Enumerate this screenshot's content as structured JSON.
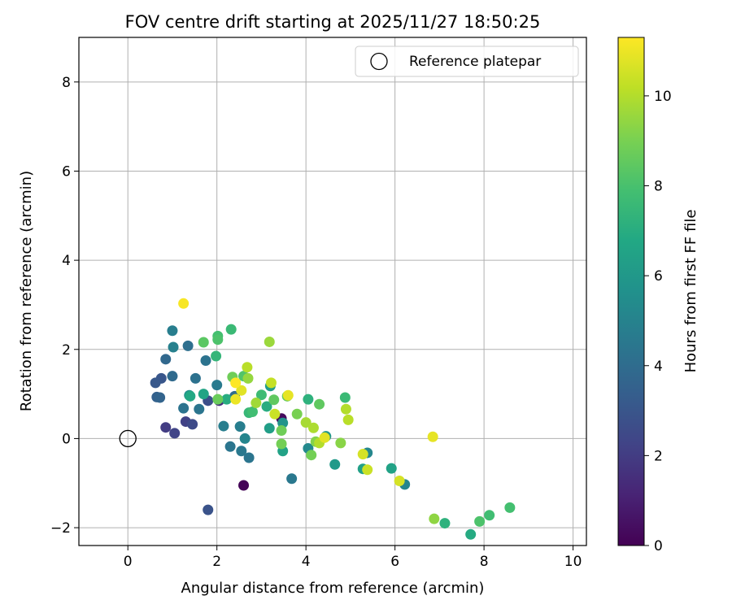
{
  "chart_data": {
    "type": "scatter",
    "title": "FOV centre drift starting at 2025/11/27 18:50:25",
    "xlabel": "Angular distance from reference (arcmin)",
    "ylabel": "Rotation from reference (arcmin)",
    "xlim": [
      -1.1,
      10.3
    ],
    "ylim": [
      -2.4,
      9.0
    ],
    "xticks": [
      0,
      2,
      4,
      6,
      8,
      10
    ],
    "yticks": [
      -2,
      0,
      2,
      4,
      6,
      8
    ],
    "xtick_labels": [
      "0",
      "2",
      "4",
      "6",
      "8",
      "10"
    ],
    "ytick_labels": [
      "−2",
      "0",
      "2",
      "4",
      "6",
      "8"
    ],
    "grid": true,
    "legend": {
      "location": "upper-right",
      "entries": [
        "Reference platepar"
      ]
    },
    "reference_point": {
      "x": 0,
      "y": 0,
      "label": "Reference platepar"
    },
    "colorbar": {
      "label": "Hours from first FF file",
      "colormap": "viridis",
      "min": 0,
      "max": 11.3,
      "ticks": [
        0,
        2,
        4,
        6,
        8,
        10
      ],
      "tick_labels": [
        "0",
        "2",
        "4",
        "6",
        "8",
        "10"
      ]
    },
    "points": [
      {
        "x": 2.6,
        "y": -1.05,
        "c": 0.1
      },
      {
        "x": 3.45,
        "y": 0.45,
        "c": 0.3
      },
      {
        "x": 2.05,
        "y": 0.85,
        "c": 1.5
      },
      {
        "x": 0.85,
        "y": 0.25,
        "c": 2.0
      },
      {
        "x": 1.3,
        "y": 0.38,
        "c": 2.2
      },
      {
        "x": 1.05,
        "y": 0.12,
        "c": 2.3
      },
      {
        "x": 1.45,
        "y": 0.32,
        "c": 2.5
      },
      {
        "x": 1.8,
        "y": -1.6,
        "c": 2.9
      },
      {
        "x": 1.8,
        "y": 0.85,
        "c": 2.7
      },
      {
        "x": 0.75,
        "y": 1.35,
        "c": 3.0
      },
      {
        "x": 0.62,
        "y": 1.25,
        "c": 3.1
      },
      {
        "x": 0.65,
        "y": 0.93,
        "c": 3.5
      },
      {
        "x": 0.72,
        "y": 0.92,
        "c": 3.6
      },
      {
        "x": 0.85,
        "y": 1.78,
        "c": 3.8
      },
      {
        "x": 1.0,
        "y": 1.4,
        "c": 3.9
      },
      {
        "x": 1.35,
        "y": 2.08,
        "c": 4.1
      },
      {
        "x": 1.25,
        "y": 0.68,
        "c": 4.3
      },
      {
        "x": 1.52,
        "y": 1.35,
        "c": 4.2
      },
      {
        "x": 1.6,
        "y": 0.66,
        "c": 4.4
      },
      {
        "x": 1.75,
        "y": 1.75,
        "c": 4.3
      },
      {
        "x": 2.0,
        "y": 1.2,
        "c": 4.6
      },
      {
        "x": 2.15,
        "y": 0.28,
        "c": 4.8
      },
      {
        "x": 2.3,
        "y": -0.18,
        "c": 4.4
      },
      {
        "x": 2.4,
        "y": 0.95,
        "c": 4.0
      },
      {
        "x": 2.52,
        "y": 0.27,
        "c": 4.8
      },
      {
        "x": 2.55,
        "y": -0.28,
        "c": 4.5
      },
      {
        "x": 2.72,
        "y": -0.43,
        "c": 4.4
      },
      {
        "x": 1.0,
        "y": 2.42,
        "c": 4.8
      },
      {
        "x": 1.02,
        "y": 2.05,
        "c": 4.9
      },
      {
        "x": 2.63,
        "y": 0.0,
        "c": 5.1
      },
      {
        "x": 3.68,
        "y": -0.9,
        "c": 4.5
      },
      {
        "x": 4.05,
        "y": -0.22,
        "c": 5.3
      },
      {
        "x": 5.38,
        "y": -0.32,
        "c": 5.2
      },
      {
        "x": 6.22,
        "y": -1.03,
        "c": 5.1
      },
      {
        "x": 1.38,
        "y": 0.97,
        "c": 5.6
      },
      {
        "x": 3.48,
        "y": 0.35,
        "c": 5.8
      },
      {
        "x": 4.45,
        "y": 0.05,
        "c": 5.9
      },
      {
        "x": 4.65,
        "y": -0.58,
        "c": 6.1
      },
      {
        "x": 3.2,
        "y": 1.18,
        "c": 6.2
      },
      {
        "x": 3.18,
        "y": 0.23,
        "c": 6.3
      },
      {
        "x": 3.48,
        "y": -0.28,
        "c": 6.5
      },
      {
        "x": 5.28,
        "y": -0.68,
        "c": 6.4
      },
      {
        "x": 5.92,
        "y": -0.67,
        "c": 6.5
      },
      {
        "x": 1.7,
        "y": 1.0,
        "c": 6.6
      },
      {
        "x": 1.4,
        "y": 0.95,
        "c": 6.8
      },
      {
        "x": 2.22,
        "y": 0.88,
        "c": 7.0
      },
      {
        "x": 3.12,
        "y": 0.72,
        "c": 7.0
      },
      {
        "x": 4.05,
        "y": 0.88,
        "c": 7.2
      },
      {
        "x": 7.7,
        "y": -2.15,
        "c": 6.9
      },
      {
        "x": 7.12,
        "y": -1.9,
        "c": 7.2
      },
      {
        "x": 1.98,
        "y": 1.85,
        "c": 7.4
      },
      {
        "x": 2.32,
        "y": 2.45,
        "c": 7.6
      },
      {
        "x": 2.02,
        "y": 2.3,
        "c": 7.9
      },
      {
        "x": 2.72,
        "y": 0.58,
        "c": 7.5
      },
      {
        "x": 3.0,
        "y": 0.98,
        "c": 7.7
      },
      {
        "x": 2.8,
        "y": 0.6,
        "c": 7.8
      },
      {
        "x": 4.88,
        "y": 0.92,
        "c": 7.6
      },
      {
        "x": 8.12,
        "y": -1.72,
        "c": 7.8
      },
      {
        "x": 8.58,
        "y": -1.55,
        "c": 7.9
      },
      {
        "x": 7.9,
        "y": -1.86,
        "c": 8.1
      },
      {
        "x": 2.02,
        "y": 2.22,
        "c": 8.1
      },
      {
        "x": 1.7,
        "y": 2.16,
        "c": 8.4
      },
      {
        "x": 2.6,
        "y": 1.4,
        "c": 8.2
      },
      {
        "x": 3.28,
        "y": 0.87,
        "c": 8.5
      },
      {
        "x": 4.3,
        "y": 0.77,
        "c": 8.5
      },
      {
        "x": 3.58,
        "y": 0.95,
        "c": 8.6
      },
      {
        "x": 2.02,
        "y": 0.88,
        "c": 8.7
      },
      {
        "x": 2.35,
        "y": 1.38,
        "c": 8.8
      },
      {
        "x": 3.45,
        "y": 0.18,
        "c": 8.8
      },
      {
        "x": 3.45,
        "y": -0.12,
        "c": 8.9
      },
      {
        "x": 4.12,
        "y": -0.37,
        "c": 8.9
      },
      {
        "x": 3.8,
        "y": 0.55,
        "c": 9.0
      },
      {
        "x": 4.22,
        "y": -0.07,
        "c": 9.2
      },
      {
        "x": 4.78,
        "y": -0.1,
        "c": 9.3
      },
      {
        "x": 6.88,
        "y": -1.8,
        "c": 9.4
      },
      {
        "x": 3.18,
        "y": 2.17,
        "c": 9.6
      },
      {
        "x": 2.7,
        "y": 1.35,
        "c": 9.5
      },
      {
        "x": 2.88,
        "y": 0.8,
        "c": 9.7
      },
      {
        "x": 4.0,
        "y": 0.36,
        "c": 9.8
      },
      {
        "x": 4.17,
        "y": 0.24,
        "c": 9.9
      },
      {
        "x": 4.3,
        "y": -0.1,
        "c": 10.0
      },
      {
        "x": 4.9,
        "y": 0.66,
        "c": 10.0
      },
      {
        "x": 4.95,
        "y": 0.42,
        "c": 10.1
      },
      {
        "x": 2.68,
        "y": 1.6,
        "c": 10.1
      },
      {
        "x": 3.22,
        "y": 1.25,
        "c": 10.3
      },
      {
        "x": 3.3,
        "y": 0.55,
        "c": 10.4
      },
      {
        "x": 5.38,
        "y": -0.7,
        "c": 10.4
      },
      {
        "x": 6.1,
        "y": -0.95,
        "c": 10.6
      },
      {
        "x": 5.28,
        "y": -0.35,
        "c": 10.6
      },
      {
        "x": 4.42,
        "y": 0.02,
        "c": 10.8
      },
      {
        "x": 3.6,
        "y": 0.97,
        "c": 10.9
      },
      {
        "x": 2.55,
        "y": 1.08,
        "c": 10.8
      },
      {
        "x": 2.42,
        "y": 0.88,
        "c": 11.0
      },
      {
        "x": 6.85,
        "y": 0.04,
        "c": 10.9
      },
      {
        "x": 1.25,
        "y": 3.03,
        "c": 11.2
      },
      {
        "x": 2.42,
        "y": 1.25,
        "c": 11.3
      }
    ]
  }
}
